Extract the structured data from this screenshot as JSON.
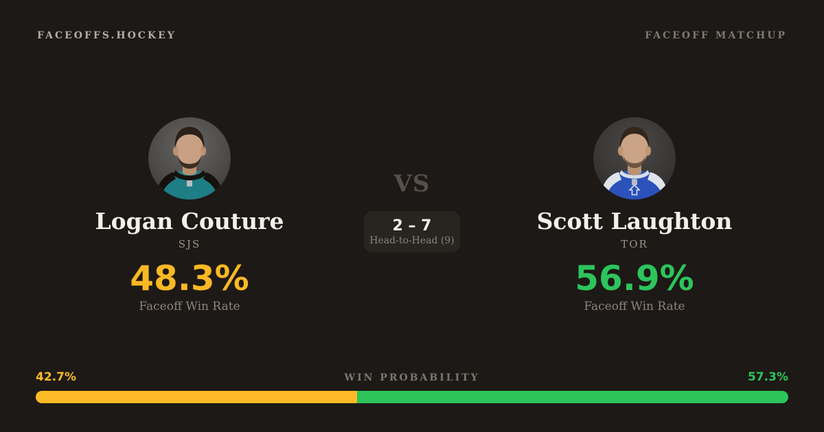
{
  "page": {
    "background": "#1d1916",
    "text_light": "#f3f0ea",
    "text_muted": "#8b847c"
  },
  "header": {
    "brand": "FACEOFFS.HOCKEY",
    "page_label": "FACEOFF MATCHUP"
  },
  "players": {
    "left": {
      "name": "Logan Couture",
      "team": "SJS",
      "win_rate": "48.3%",
      "win_rate_label": "Faceoff Win Rate",
      "accent": "#f9b824",
      "jersey_color": "#1e7e85"
    },
    "right": {
      "name": "Scott Laughton",
      "team": "TOR",
      "win_rate": "56.9%",
      "win_rate_label": "Faceoff Win Rate",
      "accent": "#2dc45c",
      "jersey_color": "#2b51bb"
    }
  },
  "matchup": {
    "vs_label": "VS",
    "head_to_head_score": "2 – 7",
    "head_to_head_label": "Head-to-Head (9)"
  },
  "win_probability": {
    "label": "WIN PROBABILITY",
    "left_pct_label": "42.7%",
    "right_pct_label": "57.3%",
    "left_value": 42.7,
    "right_value": 57.3,
    "left_color": "#fcbb26",
    "right_color": "#2dc45c"
  }
}
